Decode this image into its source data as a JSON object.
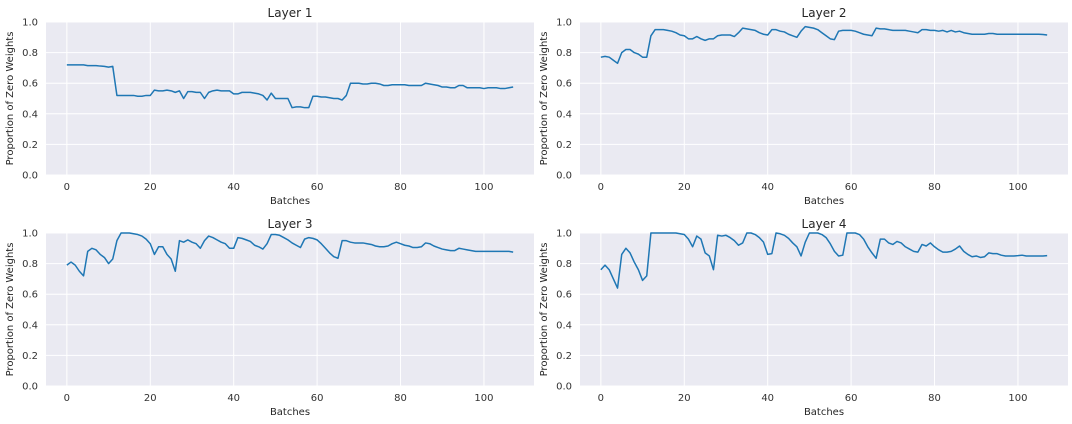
{
  "chart_data": [
    {
      "type": "line",
      "title": "Layer 1",
      "xlabel": "Batches",
      "ylabel": "Proportion of Zero Weights",
      "xlim": [
        -5,
        112
      ],
      "ylim": [
        0,
        1
      ],
      "xticks": [
        0,
        20,
        40,
        60,
        80,
        100
      ],
      "xtick_labels": [
        "0",
        "20",
        "40",
        "60",
        "80",
        "100"
      ],
      "yticks": [
        0,
        0.2,
        0.4,
        0.6,
        0.8,
        1.0
      ],
      "ytick_labels": [
        "0.0",
        "0.2",
        "0.4",
        "0.6",
        "0.8",
        "1.0"
      ],
      "grid": true,
      "color": "#1f77b4",
      "x": [
        0,
        1,
        2,
        3,
        4,
        5,
        6,
        7,
        8,
        9,
        10,
        11,
        12,
        13,
        14,
        15,
        16,
        17,
        18,
        19,
        20,
        21,
        22,
        23,
        24,
        25,
        26,
        27,
        28,
        29,
        30,
        31,
        32,
        33,
        34,
        35,
        36,
        37,
        38,
        39,
        40,
        41,
        42,
        43,
        44,
        45,
        46,
        47,
        48,
        49,
        50,
        51,
        52,
        53,
        54,
        55,
        56,
        57,
        58,
        59,
        60,
        61,
        62,
        63,
        64,
        65,
        66,
        67,
        68,
        69,
        70,
        71,
        72,
        73,
        74,
        75,
        76,
        77,
        78,
        79,
        80,
        81,
        82,
        83,
        84,
        85,
        86,
        87,
        88,
        89,
        90,
        91,
        92,
        93,
        94,
        95,
        96,
        97,
        98,
        99,
        100,
        101,
        102,
        103,
        104,
        105,
        106,
        107
      ],
      "y": [
        0.72,
        0.72,
        0.72,
        0.72,
        0.72,
        0.715,
        0.715,
        0.715,
        0.712,
        0.71,
        0.705,
        0.71,
        0.52,
        0.52,
        0.52,
        0.52,
        0.52,
        0.515,
        0.515,
        0.52,
        0.52,
        0.555,
        0.55,
        0.55,
        0.555,
        0.55,
        0.54,
        0.55,
        0.5,
        0.545,
        0.545,
        0.54,
        0.54,
        0.5,
        0.54,
        0.55,
        0.555,
        0.55,
        0.55,
        0.55,
        0.53,
        0.53,
        0.54,
        0.54,
        0.54,
        0.535,
        0.53,
        0.52,
        0.49,
        0.535,
        0.5,
        0.5,
        0.5,
        0.5,
        0.44,
        0.445,
        0.445,
        0.44,
        0.44,
        0.515,
        0.515,
        0.51,
        0.51,
        0.505,
        0.5,
        0.5,
        0.49,
        0.52,
        0.6,
        0.6,
        0.6,
        0.595,
        0.595,
        0.6,
        0.6,
        0.595,
        0.585,
        0.585,
        0.59,
        0.59,
        0.59,
        0.59,
        0.585,
        0.585,
        0.585,
        0.585,
        0.6,
        0.595,
        0.59,
        0.585,
        0.575,
        0.575,
        0.57,
        0.57,
        0.585,
        0.585,
        0.57,
        0.57,
        0.57,
        0.57,
        0.565,
        0.57,
        0.57,
        0.57,
        0.565,
        0.565,
        0.57,
        0.575
      ]
    },
    {
      "type": "line",
      "title": "Layer 2",
      "xlabel": "Batches",
      "ylabel": "Proportion of Zero Weights",
      "xlim": [
        -5,
        112
      ],
      "ylim": [
        0,
        1
      ],
      "xticks": [
        0,
        20,
        40,
        60,
        80,
        100
      ],
      "xtick_labels": [
        "0",
        "20",
        "40",
        "60",
        "80",
        "100"
      ],
      "yticks": [
        0,
        0.2,
        0.4,
        0.6,
        0.8,
        1.0
      ],
      "ytick_labels": [
        "0.0",
        "0.2",
        "0.4",
        "0.6",
        "0.8",
        "1.0"
      ],
      "grid": true,
      "color": "#1f77b4",
      "x": [
        0,
        1,
        2,
        3,
        4,
        5,
        6,
        7,
        8,
        9,
        10,
        11,
        12,
        13,
        14,
        15,
        16,
        17,
        18,
        19,
        20,
        21,
        22,
        23,
        24,
        25,
        26,
        27,
        28,
        29,
        30,
        31,
        32,
        33,
        34,
        35,
        36,
        37,
        38,
        39,
        40,
        41,
        42,
        43,
        44,
        45,
        46,
        47,
        48,
        49,
        50,
        51,
        52,
        53,
        54,
        55,
        56,
        57,
        58,
        59,
        60,
        61,
        62,
        63,
        64,
        65,
        66,
        67,
        68,
        69,
        70,
        71,
        72,
        73,
        74,
        75,
        76,
        77,
        78,
        79,
        80,
        81,
        82,
        83,
        84,
        85,
        86,
        87,
        88,
        89,
        90,
        91,
        92,
        93,
        94,
        95,
        96,
        97,
        98,
        99,
        100,
        101,
        102,
        103,
        104,
        105,
        106,
        107
      ],
      "y": [
        0.77,
        0.775,
        0.77,
        0.75,
        0.73,
        0.8,
        0.82,
        0.82,
        0.8,
        0.79,
        0.77,
        0.77,
        0.91,
        0.95,
        0.95,
        0.95,
        0.945,
        0.94,
        0.93,
        0.915,
        0.91,
        0.89,
        0.89,
        0.905,
        0.89,
        0.88,
        0.89,
        0.89,
        0.91,
        0.915,
        0.915,
        0.915,
        0.905,
        0.93,
        0.96,
        0.955,
        0.95,
        0.945,
        0.93,
        0.92,
        0.915,
        0.95,
        0.95,
        0.94,
        0.935,
        0.92,
        0.91,
        0.9,
        0.94,
        0.97,
        0.965,
        0.96,
        0.95,
        0.93,
        0.91,
        0.89,
        0.885,
        0.94,
        0.945,
        0.945,
        0.945,
        0.94,
        0.93,
        0.92,
        0.915,
        0.91,
        0.96,
        0.955,
        0.955,
        0.95,
        0.945,
        0.945,
        0.945,
        0.945,
        0.94,
        0.935,
        0.93,
        0.95,
        0.95,
        0.945,
        0.945,
        0.94,
        0.945,
        0.935,
        0.945,
        0.935,
        0.94,
        0.93,
        0.925,
        0.92,
        0.92,
        0.92,
        0.92,
        0.925,
        0.925,
        0.92,
        0.92,
        0.92,
        0.92,
        0.92,
        0.92,
        0.92,
        0.92,
        0.92,
        0.92,
        0.92,
        0.918,
        0.915
      ]
    },
    {
      "type": "line",
      "title": "Layer 3",
      "xlabel": "Batches",
      "ylabel": "Proportion of Zero Weights",
      "xlim": [
        -5,
        112
      ],
      "ylim": [
        0,
        1
      ],
      "xticks": [
        0,
        20,
        40,
        60,
        80,
        100
      ],
      "xtick_labels": [
        "0",
        "20",
        "40",
        "60",
        "80",
        "100"
      ],
      "yticks": [
        0,
        0.2,
        0.4,
        0.6,
        0.8,
        1.0
      ],
      "ytick_labels": [
        "0.0",
        "0.2",
        "0.4",
        "0.6",
        "0.8",
        "1.0"
      ],
      "grid": true,
      "color": "#1f77b4",
      "x": [
        0,
        1,
        2,
        3,
        4,
        5,
        6,
        7,
        8,
        9,
        10,
        11,
        12,
        13,
        14,
        15,
        16,
        17,
        18,
        19,
        20,
        21,
        22,
        23,
        24,
        25,
        26,
        27,
        28,
        29,
        30,
        31,
        32,
        33,
        34,
        35,
        36,
        37,
        38,
        39,
        40,
        41,
        42,
        43,
        44,
        45,
        46,
        47,
        48,
        49,
        50,
        51,
        52,
        53,
        54,
        55,
        56,
        57,
        58,
        59,
        60,
        61,
        62,
        63,
        64,
        65,
        66,
        67,
        68,
        69,
        70,
        71,
        72,
        73,
        74,
        75,
        76,
        77,
        78,
        79,
        80,
        81,
        82,
        83,
        84,
        85,
        86,
        87,
        88,
        89,
        90,
        91,
        92,
        93,
        94,
        95,
        96,
        97,
        98,
        99,
        100,
        101,
        102,
        103,
        104,
        105,
        106,
        107
      ],
      "y": [
        0.79,
        0.81,
        0.79,
        0.75,
        0.72,
        0.88,
        0.9,
        0.89,
        0.86,
        0.84,
        0.8,
        0.83,
        0.95,
        1.0,
        1.0,
        1.0,
        0.995,
        0.99,
        0.98,
        0.96,
        0.93,
        0.86,
        0.91,
        0.91,
        0.86,
        0.83,
        0.75,
        0.95,
        0.94,
        0.955,
        0.94,
        0.93,
        0.9,
        0.95,
        0.98,
        0.97,
        0.955,
        0.94,
        0.93,
        0.9,
        0.9,
        0.97,
        0.965,
        0.955,
        0.945,
        0.92,
        0.91,
        0.895,
        0.93,
        0.99,
        0.99,
        0.985,
        0.97,
        0.955,
        0.935,
        0.92,
        0.905,
        0.96,
        0.97,
        0.965,
        0.955,
        0.93,
        0.9,
        0.87,
        0.845,
        0.835,
        0.95,
        0.95,
        0.94,
        0.935,
        0.935,
        0.935,
        0.93,
        0.925,
        0.915,
        0.91,
        0.91,
        0.915,
        0.93,
        0.94,
        0.93,
        0.92,
        0.915,
        0.905,
        0.905,
        0.91,
        0.935,
        0.93,
        0.915,
        0.905,
        0.895,
        0.89,
        0.885,
        0.885,
        0.9,
        0.895,
        0.89,
        0.885,
        0.88,
        0.88,
        0.88,
        0.88,
        0.88,
        0.88,
        0.88,
        0.88,
        0.88,
        0.875
      ]
    },
    {
      "type": "line",
      "title": "Layer 4",
      "xlabel": "Batches",
      "ylabel": "Proportion of Zero Weights",
      "xlim": [
        -5,
        112
      ],
      "ylim": [
        0,
        1
      ],
      "xticks": [
        0,
        20,
        40,
        60,
        80,
        100
      ],
      "xtick_labels": [
        "0",
        "20",
        "40",
        "60",
        "80",
        "100"
      ],
      "yticks": [
        0,
        0.2,
        0.4,
        0.6,
        0.8,
        1.0
      ],
      "ytick_labels": [
        "0.0",
        "0.2",
        "0.4",
        "0.6",
        "0.8",
        "1.0"
      ],
      "grid": true,
      "color": "#1f77b4",
      "x": [
        0,
        1,
        2,
        3,
        4,
        5,
        6,
        7,
        8,
        9,
        10,
        11,
        12,
        13,
        14,
        15,
        16,
        17,
        18,
        19,
        20,
        21,
        22,
        23,
        24,
        25,
        26,
        27,
        28,
        29,
        30,
        31,
        32,
        33,
        34,
        35,
        36,
        37,
        38,
        39,
        40,
        41,
        42,
        43,
        44,
        45,
        46,
        47,
        48,
        49,
        50,
        51,
        52,
        53,
        54,
        55,
        56,
        57,
        58,
        59,
        60,
        61,
        62,
        63,
        64,
        65,
        66,
        67,
        68,
        69,
        70,
        71,
        72,
        73,
        74,
        75,
        76,
        77,
        78,
        79,
        80,
        81,
        82,
        83,
        84,
        85,
        86,
        87,
        88,
        89,
        90,
        91,
        92,
        93,
        94,
        95,
        96,
        97,
        98,
        99,
        100,
        101,
        102,
        103,
        104,
        105,
        106,
        107
      ],
      "y": [
        0.76,
        0.79,
        0.76,
        0.7,
        0.64,
        0.86,
        0.9,
        0.87,
        0.81,
        0.76,
        0.69,
        0.72,
        1.0,
        1.0,
        1.0,
        1.0,
        1.0,
        1.0,
        1.0,
        0.995,
        0.99,
        0.96,
        0.91,
        0.98,
        0.96,
        0.87,
        0.85,
        0.76,
        0.985,
        0.98,
        0.985,
        0.97,
        0.95,
        0.92,
        0.935,
        1.0,
        1.0,
        0.99,
        0.97,
        0.94,
        0.86,
        0.865,
        1.0,
        0.995,
        0.985,
        0.965,
        0.935,
        0.91,
        0.85,
        0.94,
        1.0,
        1.0,
        1.0,
        0.99,
        0.97,
        0.93,
        0.88,
        0.85,
        0.855,
        1.0,
        1.0,
        1.0,
        0.99,
        0.96,
        0.91,
        0.87,
        0.835,
        0.96,
        0.96,
        0.935,
        0.925,
        0.945,
        0.935,
        0.91,
        0.895,
        0.88,
        0.875,
        0.925,
        0.915,
        0.935,
        0.91,
        0.89,
        0.875,
        0.875,
        0.88,
        0.895,
        0.915,
        0.88,
        0.86,
        0.845,
        0.85,
        0.84,
        0.845,
        0.87,
        0.865,
        0.865,
        0.855,
        0.85,
        0.85,
        0.85,
        0.852,
        0.855,
        0.85,
        0.85,
        0.85,
        0.85,
        0.85,
        0.852
      ]
    }
  ]
}
